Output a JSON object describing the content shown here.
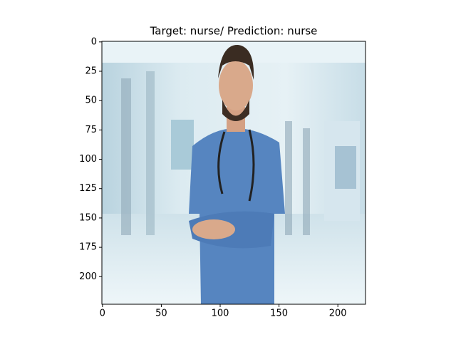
{
  "chart_data": {
    "type": "image",
    "title": "Target: nurse/ Prediction: nurse",
    "xlim": [
      -0.5,
      223.5
    ],
    "ylim": [
      223.5,
      -0.5
    ],
    "xticks": [
      0,
      50,
      100,
      150,
      200
    ],
    "yticks": [
      0,
      25,
      50,
      75,
      100,
      125,
      150,
      175,
      200
    ]
  }
}
